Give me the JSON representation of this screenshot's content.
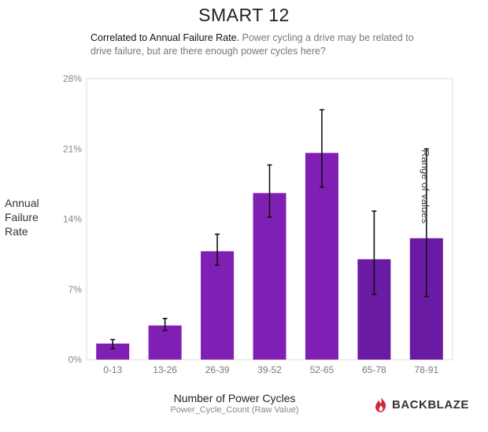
{
  "chart_data": {
    "type": "bar",
    "title": "SMART 12",
    "subtitle_lead": "Correlated to Annual Failure Rate.",
    "subtitle_rest": "Power cycling a drive may be related to drive failure, but are there enough power cycles here?",
    "ylabel": "Annual Failure Rate",
    "xlabel": "Number of Power Cycles",
    "xsublabel": "Power_Cycle_Count (Raw Value)",
    "categories": [
      "0-13",
      "13-26",
      "26-39",
      "39-52",
      "52-65",
      "65-78",
      "78-91"
    ],
    "values": [
      1.6,
      3.4,
      10.8,
      16.6,
      20.6,
      10.0,
      12.1
    ],
    "error_low": [
      1.1,
      2.9,
      9.4,
      14.2,
      17.2,
      6.5,
      6.3
    ],
    "error_high": [
      2.0,
      4.1,
      12.5,
      19.4,
      24.9,
      14.8,
      21.0
    ],
    "ylim": [
      0,
      28
    ],
    "yticks": [
      "0%",
      "7%",
      "14%",
      "21%",
      "28%"
    ],
    "ytick_values": [
      0,
      7,
      14,
      21,
      28
    ],
    "annotation": "Range of values",
    "grid": false,
    "bar_color": "#7f1fb3",
    "bar_color_dark": "#6a1aa3"
  },
  "branding": {
    "logo_text": "BACKBLAZE",
    "logo_color": "#d0263a",
    "flame_icon": "flame-icon"
  }
}
